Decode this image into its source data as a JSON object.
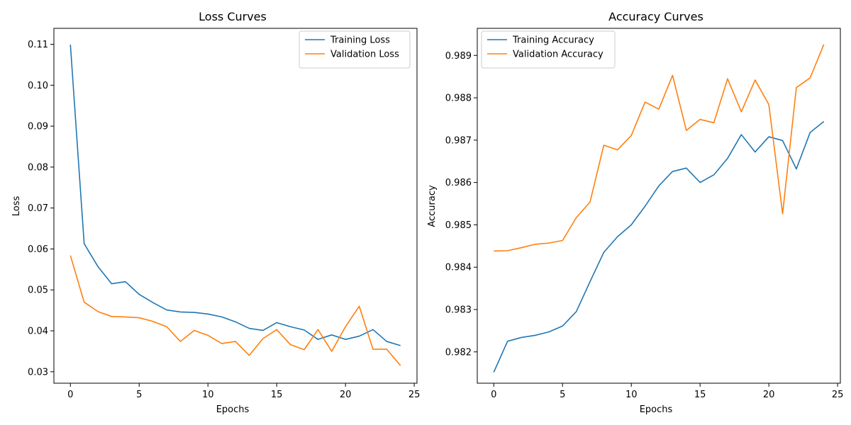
{
  "chart_data": [
    {
      "type": "line",
      "title": "Loss Curves",
      "xlabel": "Epochs",
      "ylabel": "Loss",
      "xlim": [
        -1.2,
        25.2
      ],
      "ylim": [
        0.0272,
        0.1139
      ],
      "xticks": [
        0,
        5,
        10,
        15,
        20,
        25
      ],
      "yticks": [
        0.03,
        0.04,
        0.05,
        0.06,
        0.07,
        0.08,
        0.09,
        0.1,
        0.11
      ],
      "ytick_labels": [
        "0.03",
        "0.04",
        "0.05",
        "0.06",
        "0.07",
        "0.08",
        "0.09",
        "0.10",
        "0.11"
      ],
      "legend_position": "top-right",
      "grid": false,
      "x": [
        0,
        1,
        2,
        3,
        4,
        5,
        6,
        7,
        8,
        9,
        10,
        11,
        12,
        13,
        14,
        15,
        16,
        17,
        18,
        19,
        20,
        21,
        22,
        23,
        24
      ],
      "series": [
        {
          "name": "Training Loss",
          "color": "#1f77b4",
          "values": [
            0.1099,
            0.0613,
            0.0557,
            0.0515,
            0.052,
            0.0489,
            0.0469,
            0.0451,
            0.0446,
            0.0445,
            0.0441,
            0.0434,
            0.0422,
            0.0406,
            0.0401,
            0.042,
            0.041,
            0.0402,
            0.0379,
            0.039,
            0.0379,
            0.0387,
            0.0403,
            0.0374,
            0.0364
          ]
        },
        {
          "name": "Validation Loss",
          "color": "#ff7f0e",
          "values": [
            0.0584,
            0.047,
            0.0447,
            0.0435,
            0.0434,
            0.0432,
            0.0423,
            0.041,
            0.0374,
            0.0401,
            0.0389,
            0.0369,
            0.0374,
            0.034,
            0.0381,
            0.0403,
            0.0366,
            0.0354,
            0.0403,
            0.035,
            0.041,
            0.046,
            0.0355,
            0.0355,
            0.0315
          ]
        }
      ]
    },
    {
      "type": "line",
      "title": "Accuracy Curves",
      "xlabel": "Epochs",
      "ylabel": "Accuracy",
      "xlim": [
        -1.2,
        25.2
      ],
      "ylim": [
        0.98126,
        0.98964
      ],
      "xticks": [
        0,
        5,
        10,
        15,
        20,
        25
      ],
      "yticks": [
        0.982,
        0.983,
        0.984,
        0.985,
        0.986,
        0.987,
        0.988,
        0.989
      ],
      "ytick_labels": [
        "0.982",
        "0.983",
        "0.984",
        "0.985",
        "0.986",
        "0.987",
        "0.988",
        "0.989"
      ],
      "legend_position": "top-left",
      "grid": false,
      "x": [
        0,
        1,
        2,
        3,
        4,
        5,
        6,
        7,
        8,
        9,
        10,
        11,
        12,
        13,
        14,
        15,
        16,
        17,
        18,
        19,
        20,
        21,
        22,
        23,
        24
      ],
      "series": [
        {
          "name": "Training Accuracy",
          "color": "#1f77b4",
          "values": [
            0.98152,
            0.98225,
            0.98234,
            0.98239,
            0.98247,
            0.98261,
            0.98295,
            0.98366,
            0.98435,
            0.98472,
            0.985,
            0.98544,
            0.98592,
            0.98626,
            0.98634,
            0.986,
            0.98618,
            0.98657,
            0.98713,
            0.98672,
            0.98708,
            0.98699,
            0.98632,
            0.98718,
            0.98744
          ]
        },
        {
          "name": "Validation Accuracy",
          "color": "#ff7f0e",
          "values": [
            0.98438,
            0.98439,
            0.98446,
            0.98454,
            0.98457,
            0.98463,
            0.98517,
            0.98554,
            0.98688,
            0.98677,
            0.98711,
            0.9879,
            0.98773,
            0.98853,
            0.98723,
            0.98749,
            0.98741,
            0.98845,
            0.98767,
            0.98842,
            0.98784,
            0.98526,
            0.98824,
            0.98847,
            0.98926
          ]
        }
      ]
    }
  ]
}
